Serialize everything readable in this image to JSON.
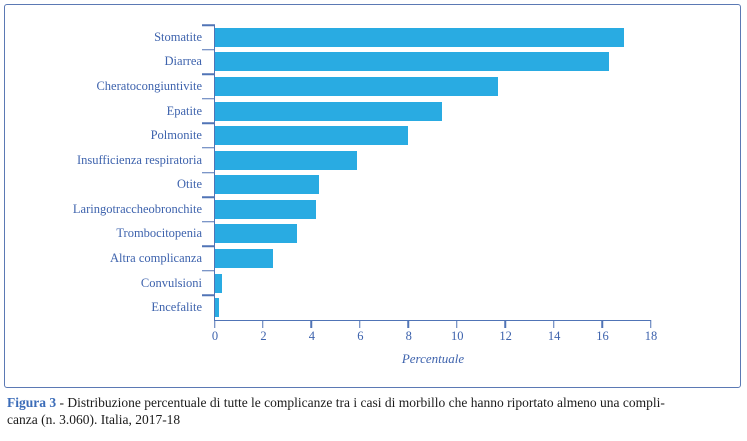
{
  "chart_data": {
    "type": "bar",
    "orientation": "horizontal",
    "categories": [
      "Stomatite",
      "Diarrea",
      "Cheratocongiuntivite",
      "Epatite",
      "Polmonite",
      "Insufficienza respiratoria",
      "Otite",
      "Laringotraccheobronchite",
      "Trombocitopenia",
      "Altra complicanza",
      "Convulsioni",
      "Encefalite"
    ],
    "values": [
      16.9,
      16.3,
      11.7,
      9.4,
      8.0,
      5.9,
      4.3,
      4.2,
      3.4,
      2.4,
      0.3,
      0.2
    ],
    "xlabel": "Percentuale",
    "ylabel": "",
    "title": "",
    "x_ticks": [
      0,
      2,
      4,
      6,
      8,
      10,
      12,
      14,
      16,
      18
    ],
    "xlim": [
      0,
      18
    ],
    "grid": false,
    "legend": false,
    "colors": {
      "bar": "#29ABE2",
      "axis": "#5074B6",
      "text": "#3E63AD",
      "frame": "#5B79B4",
      "caption_accent": "#3B6CB8"
    }
  },
  "caption": {
    "prefix": "Figura 3",
    "line1": " - Distribuzione percentuale di tutte le complicanze tra i casi di morbillo che hanno riportato almeno una compli-",
    "line2": "canza (n. 3.060). Italia, 2017-18"
  }
}
